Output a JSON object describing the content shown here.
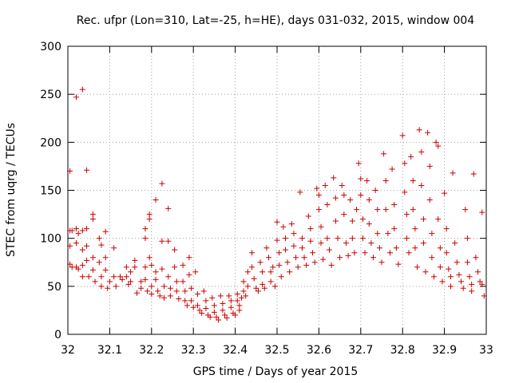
{
  "chart_data": {
    "type": "scatter",
    "title": "Rec. ufpr (Lon=310, Lat=-25, h=HE), days 031-032, 2015, window 004",
    "xlabel": "GPS time / Days of year 2015",
    "ylabel": "STEC from uqrg / TECUs",
    "xlim": [
      32,
      33
    ],
    "ylim": [
      0,
      300
    ],
    "xticks": [
      32,
      32.1,
      32.2,
      32.3,
      32.4,
      32.5,
      32.6,
      32.7,
      32.8,
      32.9,
      33
    ],
    "xtick_labels": [
      "32",
      "32.1",
      "32.2",
      "32.3",
      "32.4",
      "32.5",
      "32.6",
      "32.7",
      "32.8",
      "32.9",
      "33"
    ],
    "yticks": [
      0,
      50,
      100,
      150,
      200,
      250,
      300
    ],
    "ytick_labels": [
      "0",
      "50",
      "100",
      "150",
      "200",
      "250",
      "300"
    ],
    "marker": "+",
    "color": "#cc0000",
    "series": [
      {
        "name": "STEC",
        "points": [
          [
            32.005,
            170
          ],
          [
            32.005,
            108
          ],
          [
            32.005,
            92
          ],
          [
            32.005,
            73
          ],
          [
            32.01,
            108
          ],
          [
            32.01,
            70
          ],
          [
            32.02,
            247
          ],
          [
            32.02,
            110
          ],
          [
            32.02,
            95
          ],
          [
            32.02,
            70
          ],
          [
            32.025,
            105
          ],
          [
            32.025,
            68
          ],
          [
            32.035,
            255
          ],
          [
            32.035,
            108
          ],
          [
            32.035,
            88
          ],
          [
            32.035,
            72
          ],
          [
            32.035,
            60
          ],
          [
            32.045,
            171
          ],
          [
            32.045,
            110
          ],
          [
            32.045,
            92
          ],
          [
            32.045,
            77
          ],
          [
            32.05,
            60
          ],
          [
            32.06,
            125
          ],
          [
            32.06,
            120
          ],
          [
            32.06,
            80
          ],
          [
            32.06,
            67
          ],
          [
            32.065,
            55
          ],
          [
            32.075,
            100
          ],
          [
            32.075,
            75
          ],
          [
            32.08,
            93
          ],
          [
            32.08,
            60
          ],
          [
            32.08,
            50
          ],
          [
            32.09,
            107
          ],
          [
            32.09,
            80
          ],
          [
            32.09,
            67
          ],
          [
            32.095,
            48
          ],
          [
            32.1,
            55
          ],
          [
            32.11,
            90
          ],
          [
            32.11,
            60
          ],
          [
            32.115,
            50
          ],
          [
            32.125,
            60
          ],
          [
            32.13,
            57
          ],
          [
            32.14,
            70
          ],
          [
            32.14,
            60
          ],
          [
            32.145,
            52
          ],
          [
            32.15,
            65
          ],
          [
            32.15,
            55
          ],
          [
            32.16,
            77
          ],
          [
            32.16,
            70
          ],
          [
            32.165,
            43
          ],
          [
            32.175,
            55
          ],
          [
            32.175,
            48
          ],
          [
            32.185,
            110
          ],
          [
            32.185,
            100
          ],
          [
            32.185,
            70
          ],
          [
            32.185,
            57
          ],
          [
            32.19,
            45
          ],
          [
            32.195,
            125
          ],
          [
            32.195,
            120
          ],
          [
            32.195,
            80
          ],
          [
            32.2,
            72
          ],
          [
            32.2,
            50
          ],
          [
            32.2,
            42
          ],
          [
            32.21,
            140
          ],
          [
            32.21,
            65
          ],
          [
            32.21,
            57
          ],
          [
            32.215,
            45
          ],
          [
            32.22,
            40
          ],
          [
            32.225,
            157
          ],
          [
            32.225,
            97
          ],
          [
            32.225,
            68
          ],
          [
            32.23,
            50
          ],
          [
            32.23,
            38
          ],
          [
            32.24,
            131
          ],
          [
            32.24,
            97
          ],
          [
            32.24,
            60
          ],
          [
            32.245,
            48
          ],
          [
            32.245,
            40
          ],
          [
            32.255,
            88
          ],
          [
            32.255,
            70
          ],
          [
            32.26,
            55
          ],
          [
            32.26,
            45
          ],
          [
            32.265,
            37
          ],
          [
            32.275,
            72
          ],
          [
            32.275,
            55
          ],
          [
            32.28,
            45
          ],
          [
            32.28,
            35
          ],
          [
            32.285,
            30
          ],
          [
            32.29,
            80
          ],
          [
            32.29,
            62
          ],
          [
            32.295,
            48
          ],
          [
            32.295,
            35
          ],
          [
            32.3,
            28
          ],
          [
            32.305,
            65
          ],
          [
            32.31,
            42
          ],
          [
            32.31,
            30
          ],
          [
            32.315,
            25
          ],
          [
            32.32,
            22
          ],
          [
            32.325,
            45
          ],
          [
            32.33,
            35
          ],
          [
            32.33,
            27
          ],
          [
            32.335,
            20
          ],
          [
            32.34,
            18
          ],
          [
            32.345,
            38
          ],
          [
            32.35,
            30
          ],
          [
            32.35,
            23
          ],
          [
            32.355,
            18
          ],
          [
            32.36,
            15
          ],
          [
            32.365,
            40
          ],
          [
            32.37,
            32
          ],
          [
            32.37,
            25
          ],
          [
            32.375,
            20
          ],
          [
            32.38,
            17
          ],
          [
            32.385,
            40
          ],
          [
            32.39,
            35
          ],
          [
            32.39,
            28
          ],
          [
            32.395,
            22
          ],
          [
            32.4,
            20
          ],
          [
            32.405,
            42
          ],
          [
            32.405,
            35
          ],
          [
            32.41,
            30
          ],
          [
            32.41,
            25
          ],
          [
            32.415,
            38
          ],
          [
            32.42,
            55
          ],
          [
            32.42,
            45
          ],
          [
            32.425,
            40
          ],
          [
            32.43,
            65
          ],
          [
            32.43,
            50
          ],
          [
            32.44,
            85
          ],
          [
            32.44,
            70
          ],
          [
            32.445,
            58
          ],
          [
            32.45,
            48
          ],
          [
            32.455,
            45
          ],
          [
            32.46,
            75
          ],
          [
            32.465,
            65
          ],
          [
            32.465,
            52
          ],
          [
            32.47,
            48
          ],
          [
            32.475,
            90
          ],
          [
            32.48,
            80
          ],
          [
            32.485,
            65
          ],
          [
            32.485,
            55
          ],
          [
            32.49,
            70
          ],
          [
            32.495,
            50
          ],
          [
            32.5,
            117
          ],
          [
            32.5,
            98
          ],
          [
            32.505,
            85
          ],
          [
            32.505,
            72
          ],
          [
            32.51,
            60
          ],
          [
            32.515,
            112
          ],
          [
            32.52,
            100
          ],
          [
            32.52,
            88
          ],
          [
            32.525,
            75
          ],
          [
            32.53,
            65
          ],
          [
            32.535,
            115
          ],
          [
            32.54,
            105
          ],
          [
            32.54,
            92
          ],
          [
            32.545,
            80
          ],
          [
            32.55,
            70
          ],
          [
            32.555,
            148
          ],
          [
            32.56,
            100
          ],
          [
            32.56,
            90
          ],
          [
            32.565,
            80
          ],
          [
            32.57,
            72
          ],
          [
            32.575,
            123
          ],
          [
            32.58,
            110
          ],
          [
            32.58,
            97
          ],
          [
            32.585,
            85
          ],
          [
            32.59,
            75
          ],
          [
            32.595,
            152
          ],
          [
            32.6,
            145
          ],
          [
            32.6,
            130
          ],
          [
            32.605,
            112
          ],
          [
            32.605,
            95
          ],
          [
            32.61,
            78
          ],
          [
            32.615,
            155
          ],
          [
            32.62,
            135
          ],
          [
            32.62,
            100
          ],
          [
            32.625,
            88
          ],
          [
            32.63,
            72
          ],
          [
            32.635,
            163
          ],
          [
            32.64,
            142
          ],
          [
            32.64,
            118
          ],
          [
            32.645,
            100
          ],
          [
            32.65,
            80
          ],
          [
            32.655,
            155
          ],
          [
            32.66,
            145
          ],
          [
            32.66,
            125
          ],
          [
            32.665,
            95
          ],
          [
            32.67,
            82
          ],
          [
            32.675,
            140
          ],
          [
            32.68,
            118
          ],
          [
            32.68,
            100
          ],
          [
            32.685,
            85
          ],
          [
            32.69,
            130
          ],
          [
            32.695,
            178
          ],
          [
            32.7,
            162
          ],
          [
            32.7,
            145
          ],
          [
            32.705,
            120
          ],
          [
            32.705,
            100
          ],
          [
            32.71,
            85
          ],
          [
            32.715,
            160
          ],
          [
            32.72,
            140
          ],
          [
            32.72,
            115
          ],
          [
            32.725,
            95
          ],
          [
            32.73,
            80
          ],
          [
            32.735,
            150
          ],
          [
            32.74,
            130
          ],
          [
            32.74,
            105
          ],
          [
            32.745,
            90
          ],
          [
            32.75,
            75
          ],
          [
            32.755,
            188
          ],
          [
            32.76,
            160
          ],
          [
            32.76,
            130
          ],
          [
            32.765,
            105
          ],
          [
            32.77,
            85
          ],
          [
            32.775,
            172
          ],
          [
            32.78,
            135
          ],
          [
            32.78,
            110
          ],
          [
            32.785,
            90
          ],
          [
            32.79,
            73
          ],
          [
            32.8,
            207
          ],
          [
            32.805,
            178
          ],
          [
            32.805,
            148
          ],
          [
            32.81,
            125
          ],
          [
            32.81,
            100
          ],
          [
            32.815,
            85
          ],
          [
            32.82,
            185
          ],
          [
            32.825,
            160
          ],
          [
            32.825,
            130
          ],
          [
            32.83,
            110
          ],
          [
            32.83,
            90
          ],
          [
            32.835,
            70
          ],
          [
            32.84,
            213
          ],
          [
            32.845,
            190
          ],
          [
            32.845,
            155
          ],
          [
            32.85,
            120
          ],
          [
            32.85,
            95
          ],
          [
            32.855,
            65
          ],
          [
            32.86,
            210
          ],
          [
            32.865,
            175
          ],
          [
            32.865,
            140
          ],
          [
            32.87,
            105
          ],
          [
            32.87,
            80
          ],
          [
            32.875,
            60
          ],
          [
            32.88,
            200
          ],
          [
            32.885,
            196
          ],
          [
            32.885,
            120
          ],
          [
            32.89,
            90
          ],
          [
            32.89,
            70
          ],
          [
            32.895,
            55
          ],
          [
            32.9,
            147
          ],
          [
            32.905,
            110
          ],
          [
            32.905,
            85
          ],
          [
            32.91,
            68
          ],
          [
            32.915,
            60
          ],
          [
            32.915,
            50
          ],
          [
            32.92,
            168
          ],
          [
            32.925,
            95
          ],
          [
            32.93,
            75
          ],
          [
            32.935,
            62
          ],
          [
            32.94,
            55
          ],
          [
            32.945,
            48
          ],
          [
            32.95,
            130
          ],
          [
            32.955,
            100
          ],
          [
            32.955,
            75
          ],
          [
            32.96,
            60
          ],
          [
            32.965,
            52
          ],
          [
            32.965,
            45
          ],
          [
            32.97,
            167
          ],
          [
            32.975,
            80
          ],
          [
            32.98,
            65
          ],
          [
            32.985,
            55
          ],
          [
            32.99,
            127
          ],
          [
            32.99,
            52
          ],
          [
            32.995,
            40
          ]
        ]
      }
    ]
  }
}
